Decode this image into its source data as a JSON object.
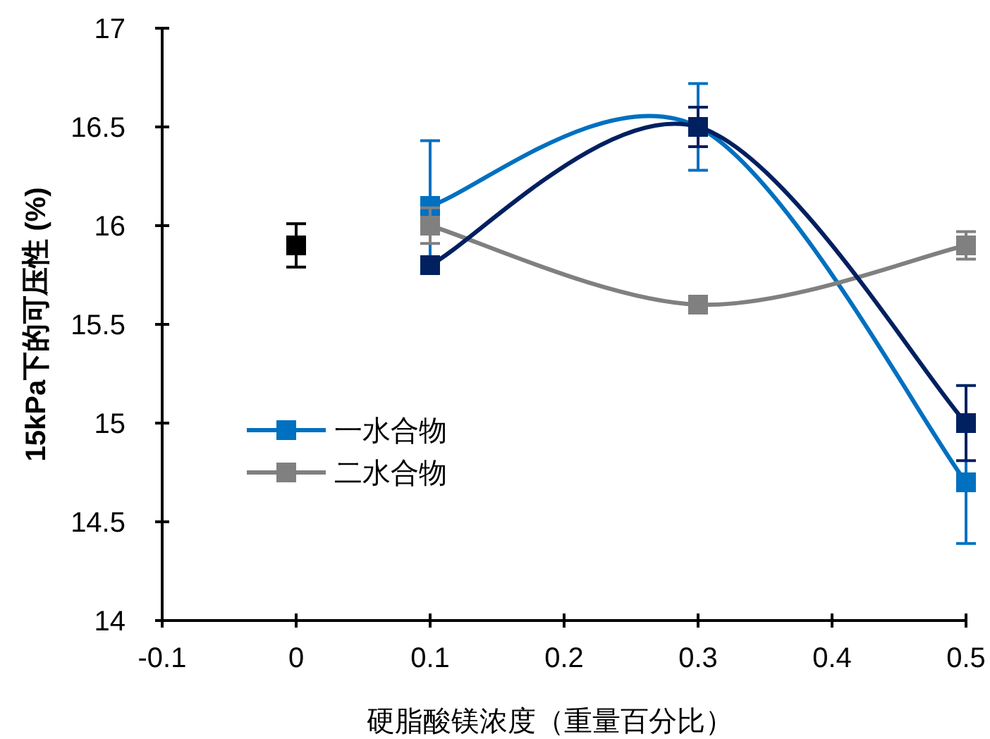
{
  "chart_data": {
    "type": "line",
    "xlabel": "硬脂酸镁浓度（重量百分比）",
    "ylabel": "15kPa下的可压性 (%)",
    "xlim": [
      -0.1,
      0.5
    ],
    "xticks": [
      -0.1,
      0,
      0.1,
      0.2,
      0.3,
      0.4,
      0.5
    ],
    "ylim": [
      14,
      17
    ],
    "yticks": [
      14,
      14.5,
      15,
      15.5,
      16,
      16.5,
      17
    ],
    "grid": false,
    "legend": "left",
    "marker": "square",
    "line_style": "solid",
    "series": [
      {
        "color": "#000000",
        "x": [
          0
        ],
        "values": [
          15.9
        ],
        "errors": [
          0.11
        ]
      },
      {
        "name": "一水合物",
        "color": "#0070c0",
        "x": [
          0.1,
          0.3,
          0.5
        ],
        "values": [
          16.1,
          16.5,
          14.7
        ],
        "errors": [
          0.33,
          0.22,
          0.31
        ]
      },
      {
        "name": "二水合物",
        "color": "#808080",
        "x": [
          0.1,
          0.3,
          0.5
        ],
        "values": [
          16.0,
          15.6,
          15.9
        ],
        "errors": [
          0.09,
          null,
          0.07
        ]
      },
      {
        "color": "#002060",
        "x": [
          0.1,
          0.3,
          0.5
        ],
        "values": [
          15.8,
          16.5,
          15.0
        ],
        "errors": [
          null,
          0.1,
          0.19
        ]
      }
    ]
  }
}
